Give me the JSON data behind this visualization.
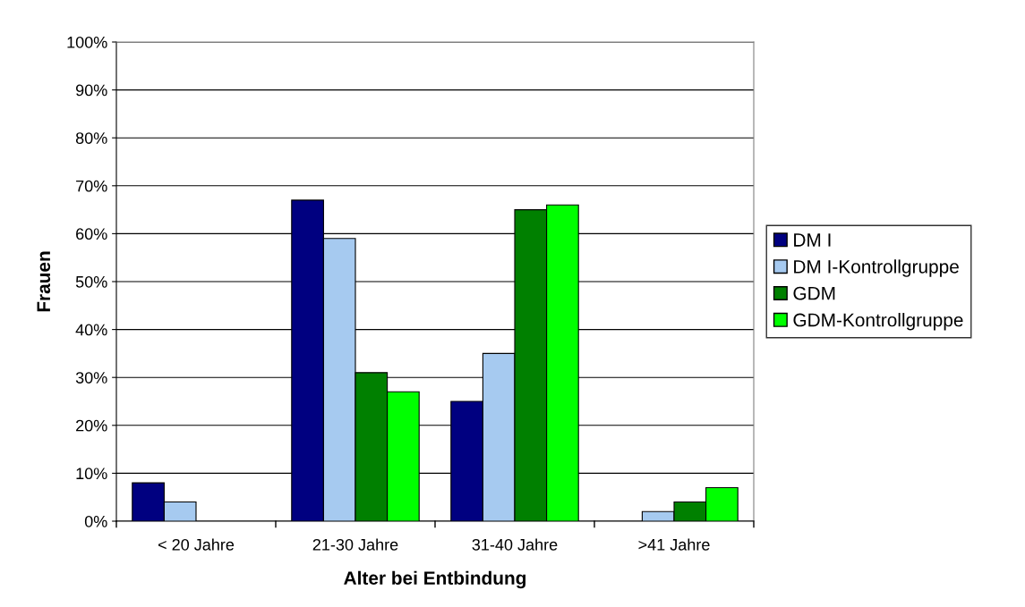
{
  "chart_data": {
    "type": "bar",
    "xlabel": "Alter bei Entbindung",
    "ylabel": "Frauen",
    "categories": [
      "< 20 Jahre",
      "21-30 Jahre",
      "31-40 Jahre",
      ">41 Jahre"
    ],
    "series": [
      {
        "name": "DM I",
        "color": "#000080",
        "values": [
          8,
          67,
          25,
          0
        ]
      },
      {
        "name": "DM I-Kontrollgruppe",
        "color": "#a6caf0",
        "values": [
          4,
          59,
          35,
          2
        ]
      },
      {
        "name": "GDM",
        "color": "#008000",
        "values": [
          0,
          31,
          65,
          4
        ]
      },
      {
        "name": "GDM-Kontrollgruppe",
        "color": "#00ff00",
        "values": [
          0,
          27,
          66,
          7
        ]
      }
    ],
    "ylim": [
      0,
      100
    ],
    "yticks": [
      {
        "value": 0,
        "label": "0%"
      },
      {
        "value": 10,
        "label": "10%"
      },
      {
        "value": 20,
        "label": "20%"
      },
      {
        "value": 30,
        "label": "30%"
      },
      {
        "value": 40,
        "label": "40%"
      },
      {
        "value": 50,
        "label": "50%"
      },
      {
        "value": 60,
        "label": "60%"
      },
      {
        "value": 70,
        "label": "70%"
      },
      {
        "value": 80,
        "label": "80%"
      },
      {
        "value": 90,
        "label": "90%"
      },
      {
        "value": 100,
        "label": "100%"
      }
    ],
    "grid": "y",
    "legend": "right"
  }
}
